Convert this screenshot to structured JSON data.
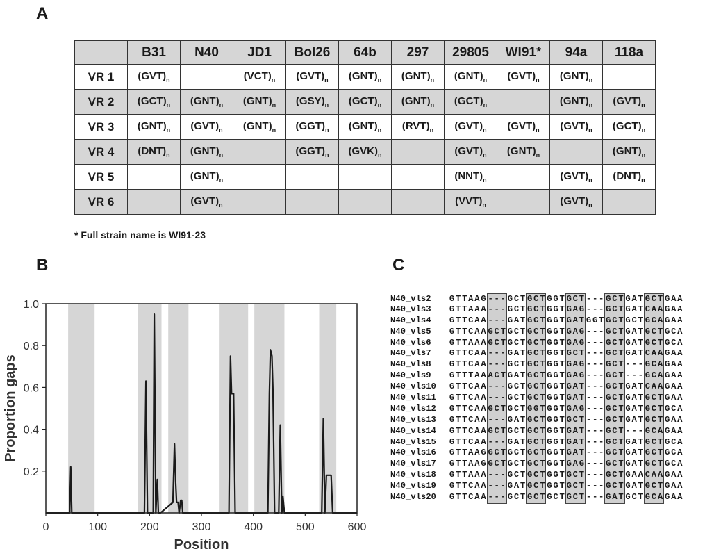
{
  "panels": {
    "a": "A",
    "b": "B",
    "c": "C"
  },
  "table": {
    "corner": "",
    "columns": [
      "B31",
      "N40",
      "JD1",
      "Bol26",
      "64b",
      "297",
      "29805",
      "WI91*",
      "94a",
      "118a"
    ],
    "subscript": "n",
    "rows": [
      {
        "label": "VR 1",
        "cells": [
          "GVT",
          "",
          "VCT",
          "GVT",
          "GNT",
          "GNT",
          "GNT",
          "GVT",
          "GNT",
          ""
        ]
      },
      {
        "label": "VR 2",
        "cells": [
          "GCT",
          "GNT",
          "GNT",
          "GSY",
          "GCT",
          "GNT",
          "GCT",
          "",
          "GNT",
          "GVT"
        ]
      },
      {
        "label": "VR 3",
        "cells": [
          "GNT",
          "GVT",
          "GNT",
          "GGT",
          "GNT",
          "RVT",
          "GVT",
          "GVT",
          "GVT",
          "GCT"
        ]
      },
      {
        "label": "VR 4",
        "cells": [
          "DNT",
          "GNT",
          "",
          "GGT",
          "GVK",
          "",
          "GVT",
          "GNT",
          "",
          "GNT"
        ]
      },
      {
        "label": "VR 5",
        "cells": [
          "",
          "GNT",
          "",
          "",
          "",
          "",
          "NNT",
          "",
          "GVT",
          "DNT"
        ]
      },
      {
        "label": "VR 6",
        "cells": [
          "",
          "GVT",
          "",
          "",
          "",
          "",
          "VVT",
          "",
          "GVT",
          ""
        ]
      }
    ],
    "footnote": "* Full strain name is WI91-23"
  },
  "chart_data": {
    "type": "line",
    "title": "",
    "xlabel": "Position",
    "ylabel": "Proportion gaps",
    "xlim": [
      0,
      600
    ],
    "ylim": [
      0,
      1.0
    ],
    "xticks": [
      "0",
      "100",
      "200",
      "300",
      "400",
      "500",
      "600"
    ],
    "yticks": [
      "0.2",
      "0.4",
      "0.6",
      "0.8",
      "1.0"
    ],
    "shaded_regions": [
      [
        43,
        94
      ],
      [
        178,
        223
      ],
      [
        236,
        275
      ],
      [
        335,
        390
      ],
      [
        402,
        460
      ],
      [
        527,
        560
      ]
    ],
    "series": [
      {
        "x": [
          0,
          46,
          48,
          50,
          190,
          193,
          196,
          207,
          209,
          212,
          215,
          217,
          221,
          245,
          248,
          250,
          252,
          255,
          257,
          260,
          262,
          264,
          266,
          353,
          356,
          358,
          362,
          365,
          428,
          431,
          433,
          436,
          438,
          441,
          449,
          452,
          455,
          457,
          460,
          532,
          535,
          538,
          541,
          550,
          553,
          600
        ],
        "y": [
          0,
          0,
          0.22,
          0,
          0,
          0.63,
          0,
          0,
          0.95,
          0,
          0.16,
          0,
          0,
          0.05,
          0.33,
          0.16,
          0.05,
          0.05,
          0,
          0.06,
          0.06,
          0,
          0,
          0,
          0.75,
          0.57,
          0.57,
          0,
          0,
          0.57,
          0.78,
          0.75,
          0.58,
          0,
          0,
          0.42,
          0,
          0.08,
          0,
          0,
          0.45,
          0,
          0.18,
          0.18,
          0,
          0
        ]
      }
    ],
    "color": "#1a1a1a",
    "shade_color": "#d6d6d6"
  },
  "alignment": {
    "highlight_columns": [
      [
        6,
        8
      ],
      [
        12,
        14
      ],
      [
        18,
        20
      ],
      [
        24,
        26
      ],
      [
        30,
        32
      ]
    ],
    "rows": [
      {
        "name": "N40_vls2",
        "seq": "GTTAAG---GCTGCTGGTGCT---GCTGATGCTGAA"
      },
      {
        "name": "N40_vls3",
        "seq": "GTTAAA---GCTGCTGGTGAG---GCTGATCAAGAA"
      },
      {
        "name": "N40_vls4",
        "seq": "GTTCAA---GATGCTGGTGATGGTGCTGCTGCAGAA"
      },
      {
        "name": "N40_vls5",
        "seq": "GTTCAAGCTGCTGCTGGTGAG---GCTGATGCTGCA"
      },
      {
        "name": "N40_vls6",
        "seq": "GTTAAAGCTGCTGCTGGTGAG---GCTGATGCTGCA"
      },
      {
        "name": "N40_vls7",
        "seq": "GTTCAA---GATGCTGGTGCT---GCTGATCAAGAA"
      },
      {
        "name": "N40_vls8",
        "seq": "GTTCAA---GCTGCTGGTGAG---GCT---GCAGAA"
      },
      {
        "name": "N40_vls9",
        "seq": "GTTTAAACTGATGCTGGTGAG---GCT---GCAGAA"
      },
      {
        "name": "N40_vls10",
        "seq": "GTTCAA---GCTGCTGGTGAT---GCTGATCAAGAA"
      },
      {
        "name": "N40_vls11",
        "seq": "GTTCAA---GCTGCTGGTGAT---GCTGATGCTGAA"
      },
      {
        "name": "N40_vls12",
        "seq": "GTTCAAGCTGCTGGTGGTGAG---GCTGATGCTGCA"
      },
      {
        "name": "N40_vls13",
        "seq": "GTTCAA---GATGCTGGTGCT---GCTGATGCTGAA"
      },
      {
        "name": "N40_vls14",
        "seq": "GTTCAAGCTGCTGCTGGTGAT---GCT---GCAGAA"
      },
      {
        "name": "N40_vls15",
        "seq": "GTTCAA---GATGCTGGTGAT---GCTGATGCTGCA"
      },
      {
        "name": "N40_vls16",
        "seq": "GTTAAGGCTGCTGCTGGTGAT---GCTGATGCTGCA"
      },
      {
        "name": "N40_vls17",
        "seq": "GTTAAGGCTGCTGCTGGTGAG---GCTGATGCTGCA"
      },
      {
        "name": "N40_vls18",
        "seq": "GTTAAA---GCTGCTGGTGCT---GCTGAACAAGAA"
      },
      {
        "name": "N40_vls19",
        "seq": "GTTCAA---GATGCTGGTGCT---GCTGATGCTGAA"
      },
      {
        "name": "N40_vls20",
        "seq": "GTTCAA---GCTGCTGCTGCT---GATGCTGCAGAA"
      }
    ]
  }
}
